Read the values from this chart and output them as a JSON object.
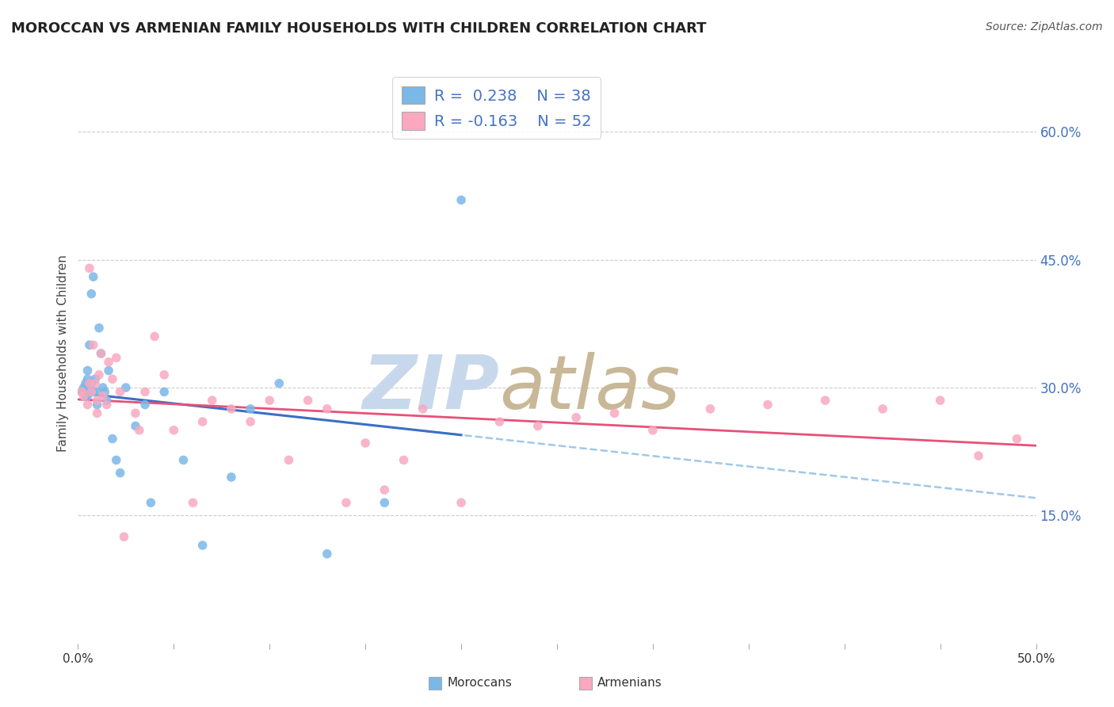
{
  "title": "MOROCCAN VS ARMENIAN FAMILY HOUSEHOLDS WITH CHILDREN CORRELATION CHART",
  "source": "Source: ZipAtlas.com",
  "ylabel": "Family Households with Children",
  "xlim": [
    0.0,
    0.5
  ],
  "ylim": [
    0.0,
    0.68
  ],
  "xticks": [
    0.0,
    0.05,
    0.1,
    0.15,
    0.2,
    0.25,
    0.3,
    0.35,
    0.4,
    0.45,
    0.5
  ],
  "xticklabels": [
    "0.0%",
    "",
    "",
    "",
    "",
    "",
    "",
    "",
    "",
    "",
    "50.0%"
  ],
  "yticks": [
    0.0,
    0.15,
    0.3,
    0.45,
    0.6
  ],
  "moroccan_color": "#7ab8e8",
  "armenian_color": "#f9a8c0",
  "moroccan_line_color": "#3a6fc4",
  "armenian_line_color": "#e8507a",
  "dashed_line_color": "#a0c8e8",
  "legend_R_moroccan": "R =  0.238",
  "legend_N_moroccan": "N = 38",
  "legend_R_armenian": "R = -0.163",
  "legend_N_armenian": "N = 52",
  "moroccan_x": [
    0.002,
    0.003,
    0.004,
    0.004,
    0.005,
    0.005,
    0.005,
    0.006,
    0.006,
    0.007,
    0.007,
    0.008,
    0.008,
    0.009,
    0.01,
    0.01,
    0.011,
    0.012,
    0.013,
    0.014,
    0.015,
    0.016,
    0.018,
    0.02,
    0.022,
    0.025,
    0.03,
    0.035,
    0.038,
    0.045,
    0.055,
    0.065,
    0.08,
    0.09,
    0.105,
    0.13,
    0.16,
    0.2
  ],
  "moroccan_y": [
    0.295,
    0.3,
    0.29,
    0.305,
    0.31,
    0.29,
    0.32,
    0.3,
    0.35,
    0.305,
    0.41,
    0.43,
    0.295,
    0.31,
    0.295,
    0.28,
    0.37,
    0.34,
    0.3,
    0.295,
    0.285,
    0.32,
    0.24,
    0.215,
    0.2,
    0.3,
    0.255,
    0.28,
    0.165,
    0.295,
    0.215,
    0.115,
    0.195,
    0.275,
    0.305,
    0.105,
    0.165,
    0.52
  ],
  "armenian_x": [
    0.002,
    0.003,
    0.005,
    0.006,
    0.006,
    0.007,
    0.008,
    0.009,
    0.01,
    0.01,
    0.011,
    0.012,
    0.013,
    0.015,
    0.016,
    0.018,
    0.02,
    0.022,
    0.024,
    0.03,
    0.032,
    0.035,
    0.04,
    0.045,
    0.05,
    0.06,
    0.065,
    0.07,
    0.08,
    0.09,
    0.1,
    0.11,
    0.12,
    0.13,
    0.14,
    0.15,
    0.16,
    0.17,
    0.18,
    0.2,
    0.22,
    0.24,
    0.26,
    0.28,
    0.3,
    0.33,
    0.36,
    0.39,
    0.42,
    0.45,
    0.47,
    0.49
  ],
  "armenian_y": [
    0.295,
    0.29,
    0.28,
    0.44,
    0.305,
    0.295,
    0.35,
    0.305,
    0.285,
    0.27,
    0.315,
    0.34,
    0.29,
    0.28,
    0.33,
    0.31,
    0.335,
    0.295,
    0.125,
    0.27,
    0.25,
    0.295,
    0.36,
    0.315,
    0.25,
    0.165,
    0.26,
    0.285,
    0.275,
    0.26,
    0.285,
    0.215,
    0.285,
    0.275,
    0.165,
    0.235,
    0.18,
    0.215,
    0.275,
    0.165,
    0.26,
    0.255,
    0.265,
    0.27,
    0.25,
    0.275,
    0.28,
    0.285,
    0.275,
    0.285,
    0.22,
    0.24
  ],
  "background_color": "#ffffff",
  "grid_color": "#cccccc",
  "title_fontsize": 13,
  "axis_label_fontsize": 11,
  "tick_fontsize": 11,
  "watermark_color_zip": "#c8d8ec",
  "watermark_color_atlas": "#c8b898"
}
